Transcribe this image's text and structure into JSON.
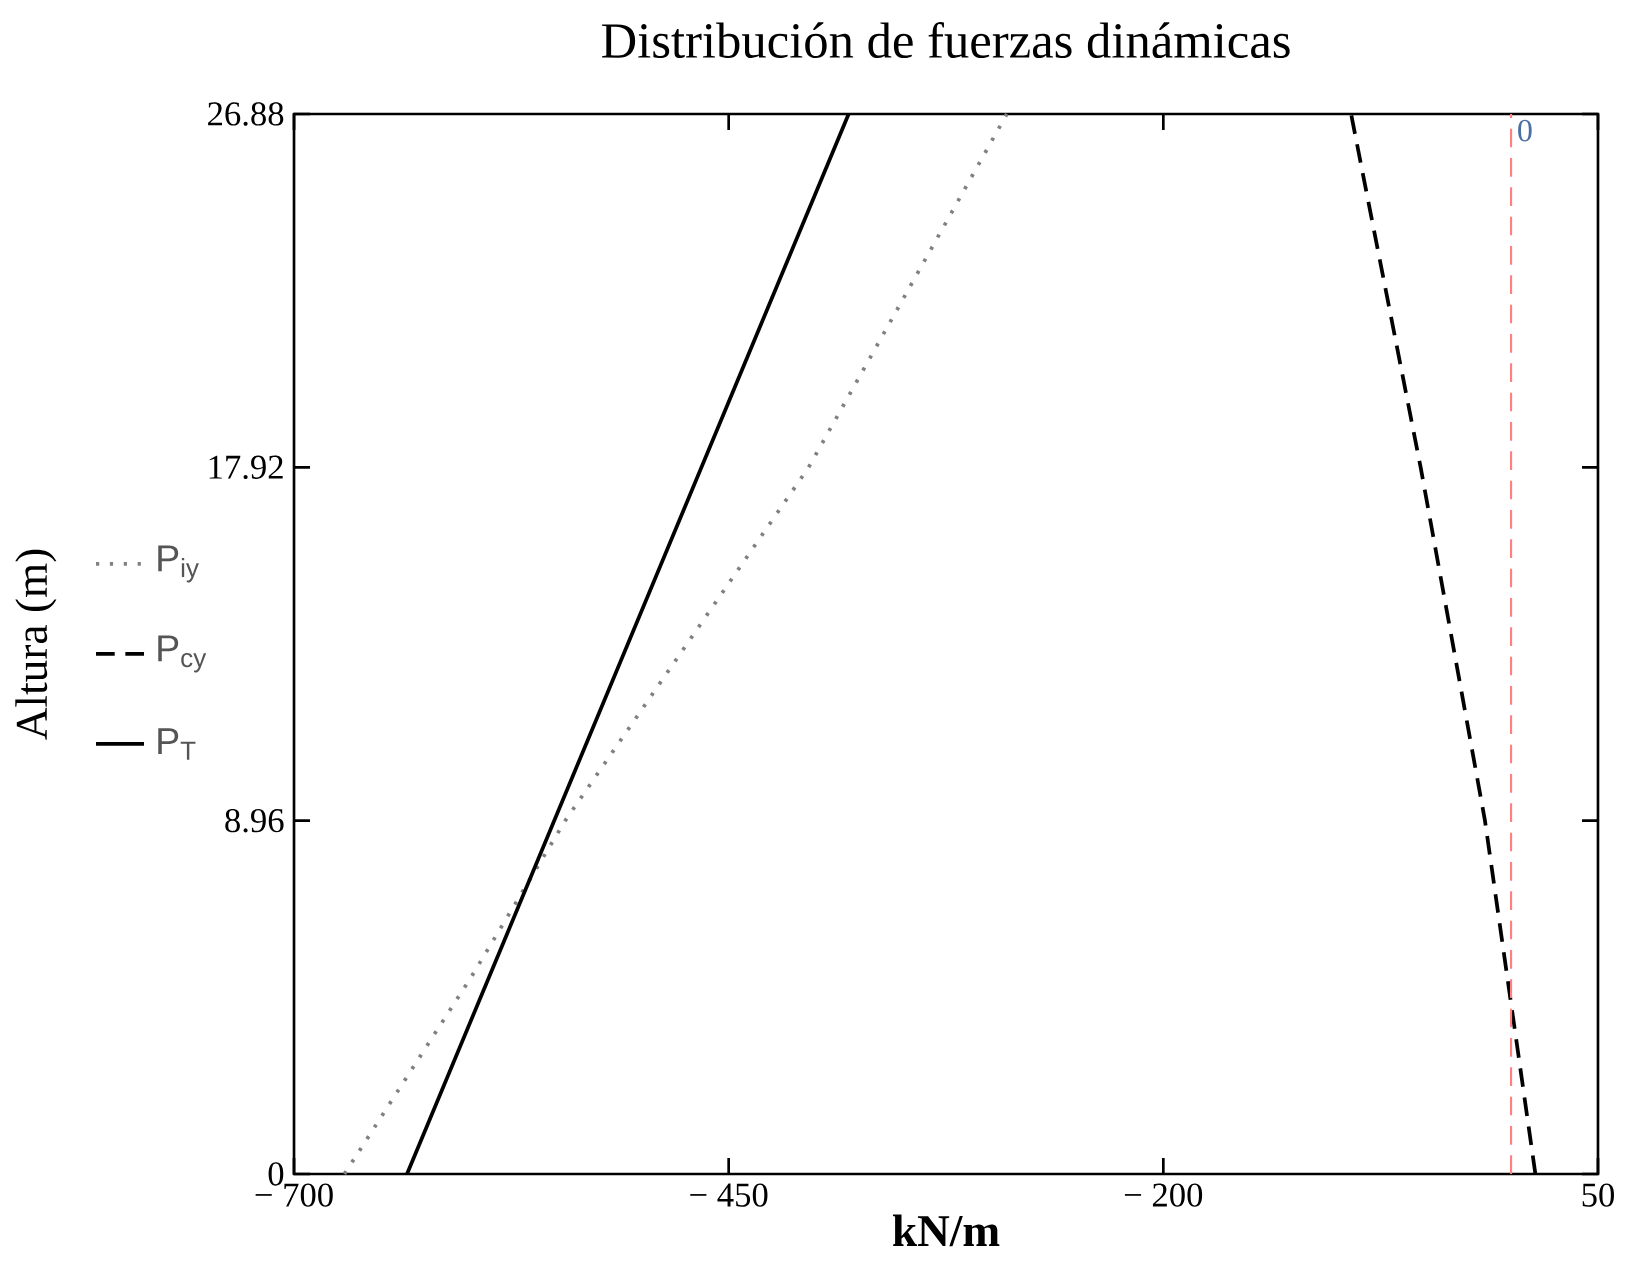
{
  "chart_data": {
    "type": "line",
    "title": "Distribución de fuerzas dinámicas",
    "xlabel": "kN/m",
    "ylabel": "Altura (m)",
    "series": [
      {
        "name": "P$_{iy}$",
        "color": "#808080",
        "line_style": "dotted",
        "x": [
          -671,
          -598,
          -544,
          -404,
          -290
        ],
        "values": [
          0,
          5,
          8.96,
          17.92,
          26.88
        ]
      },
      {
        "name": "P$_{cy}$",
        "color": "#000000",
        "line_style": "dashed",
        "x": [
          14,
          -15,
          -52,
          -92
        ],
        "values": [
          0,
          8.96,
          17.92,
          26.88
        ]
      },
      {
        "name": "P$_{T}$",
        "color": "#000000",
        "line_style": "solid",
        "x": [
          -635,
          -381
        ],
        "values": [
          0,
          26.88
        ]
      }
    ],
    "xlim": [
      -700,
      50
    ],
    "ylim": [
      0,
      26.88
    ],
    "xticks": [
      {
        "value": -700,
        "label": "− 700"
      },
      {
        "value": -450,
        "label": "− 450"
      },
      {
        "value": -200,
        "label": "− 200"
      },
      50
    ],
    "yticks": [
      0,
      8.96,
      17.92,
      26.88
    ],
    "ref_lines": [
      {
        "axis": "x",
        "value": 0,
        "label": "0",
        "color": "#ff8080",
        "line_style": "dashed"
      }
    ],
    "legend": "left",
    "grid": false,
    "marker": "none"
  }
}
